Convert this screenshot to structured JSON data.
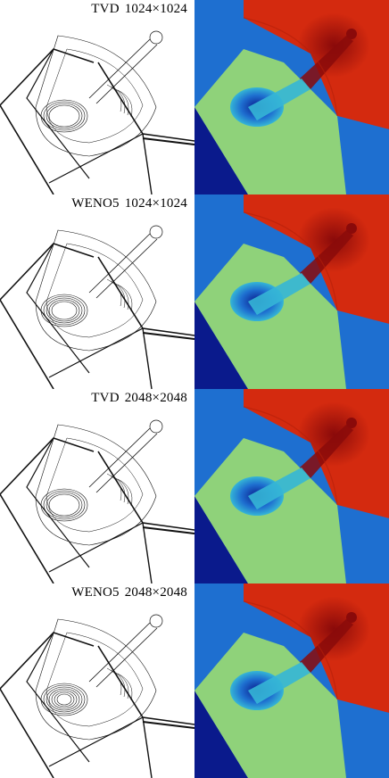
{
  "figure": {
    "rows": [
      {
        "scheme": "TVD",
        "resolution": "1024×1024"
      },
      {
        "scheme": "WENO5",
        "resolution": "1024×1024"
      },
      {
        "scheme": "TVD",
        "resolution": "2048×2048"
      },
      {
        "scheme": "WENO5",
        "resolution": "2048×2048"
      }
    ],
    "colors": {
      "dark_blue": "#0a1a8c",
      "mid_blue": "#1e6fd0",
      "cyan": "#35b6d6",
      "green": "#8fd27a",
      "red": "#d42a0f",
      "dark_red": "#8a0a0a",
      "contour": "#111111"
    }
  }
}
